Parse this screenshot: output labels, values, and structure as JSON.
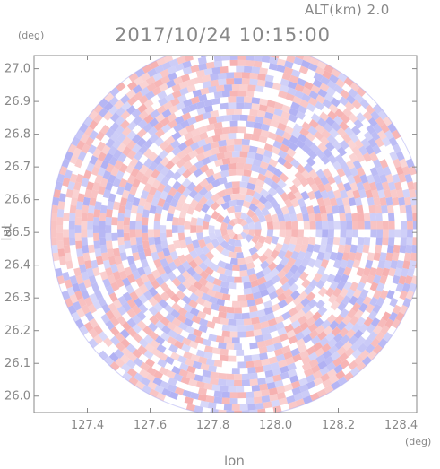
{
  "header": {
    "altitude_label": "ALT(km) 2.0",
    "timestamp": "2017/10/24 10:15:00"
  },
  "chart_data": {
    "type": "heatmap",
    "title": "2017/10/24 10:15:00",
    "xlabel": "lon",
    "ylabel": "lat",
    "x_unit": "(deg)",
    "y_unit": "(deg)",
    "xlim": [
      127.23,
      128.45
    ],
    "ylim": [
      25.95,
      27.04
    ],
    "x_ticks": [
      127.4,
      127.6,
      127.8,
      128.0,
      128.2,
      128.4
    ],
    "x_tick_labels": [
      "127.4",
      "127.6",
      "127.8",
      "128.0",
      "128.2",
      "128.4"
    ],
    "y_ticks": [
      26.0,
      26.1,
      26.2,
      26.3,
      26.4,
      26.5,
      26.6,
      26.7,
      26.8,
      26.9,
      27.0
    ],
    "y_tick_labels": [
      "26.0",
      "26.1",
      "26.2",
      "26.3",
      "26.4",
      "26.5",
      "26.6",
      "26.7",
      "26.8",
      "26.9",
      "27.0"
    ],
    "radar_center": {
      "lon": 127.88,
      "lat": 26.51
    },
    "colors": {
      "positive": "#f5a6a6",
      "negative": "#a9a9f2",
      "neutral": "#ffffff",
      "axis": "#888888"
    }
  }
}
